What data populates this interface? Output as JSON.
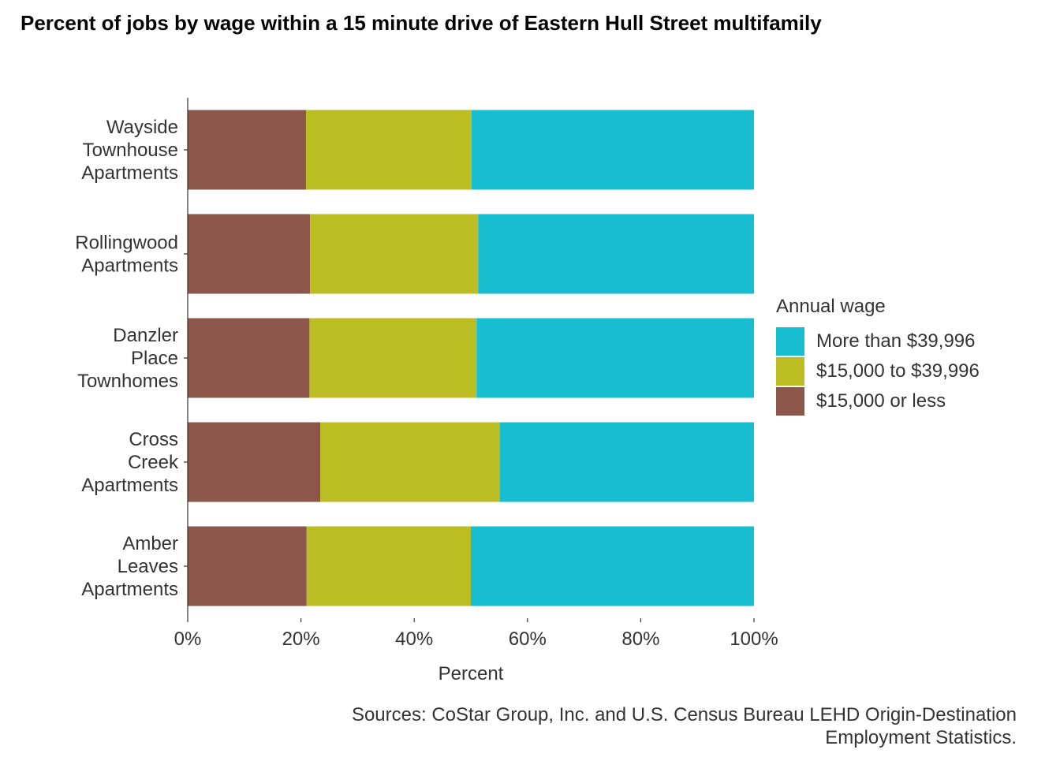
{
  "title": "Percent of jobs by wage within a 15 minute drive of Eastern Hull Street multifamily",
  "caption_lines": [
    "Sources: CoStar Group, Inc. and U.S. Census Bureau LEHD Origin-Destination",
    "Employment Statistics."
  ],
  "legend": {
    "title": "Annual wage",
    "items": [
      {
        "label": "More than $39,996",
        "color": "#17BECF"
      },
      {
        "label": "$15,000 to $39,996",
        "color": "#BCBD22"
      },
      {
        "label": "$15,000 or less",
        "color": "#8C564B"
      }
    ]
  },
  "chart_data": {
    "type": "bar",
    "orientation": "horizontal",
    "stacked": true,
    "title": "Percent of jobs by wage within a 15 minute drive of Eastern Hull Street multifamily",
    "xlabel": "Percent",
    "ylabel": "",
    "xlim": [
      0,
      1
    ],
    "x_ticks": [
      0,
      0.2,
      0.4,
      0.6,
      0.8,
      1.0
    ],
    "x_tick_labels": [
      "0%",
      "20%",
      "40%",
      "60%",
      "80%",
      "100%"
    ],
    "grid": false,
    "legend_position": "right",
    "categories": [
      "Wayside Townhouse Apartments",
      "Rollingwood Apartments",
      "Danzler Place Townhomes",
      "Cross Creek Apartments",
      "Amber Leaves Apartments"
    ],
    "category_label_lines": [
      [
        "Wayside",
        "Townhouse",
        "Apartments"
      ],
      [
        "Rollingwood",
        "Apartments"
      ],
      [
        "Danzler",
        "Place",
        "Townhomes"
      ],
      [
        "Cross",
        "Creek",
        "Apartments"
      ],
      [
        "Amber",
        "Leaves",
        "Apartments"
      ]
    ],
    "series": [
      {
        "name": "$15,000 or less",
        "color": "#8C564B",
        "values": [
          0.209,
          0.216,
          0.215,
          0.234,
          0.21
        ]
      },
      {
        "name": "$15,000 to $39,996",
        "color": "#BCBD22",
        "values": [
          0.292,
          0.297,
          0.295,
          0.317,
          0.29
        ]
      },
      {
        "name": "More than $39,996",
        "color": "#17BECF",
        "values": [
          0.499,
          0.487,
          0.49,
          0.449,
          0.5
        ]
      }
    ]
  }
}
